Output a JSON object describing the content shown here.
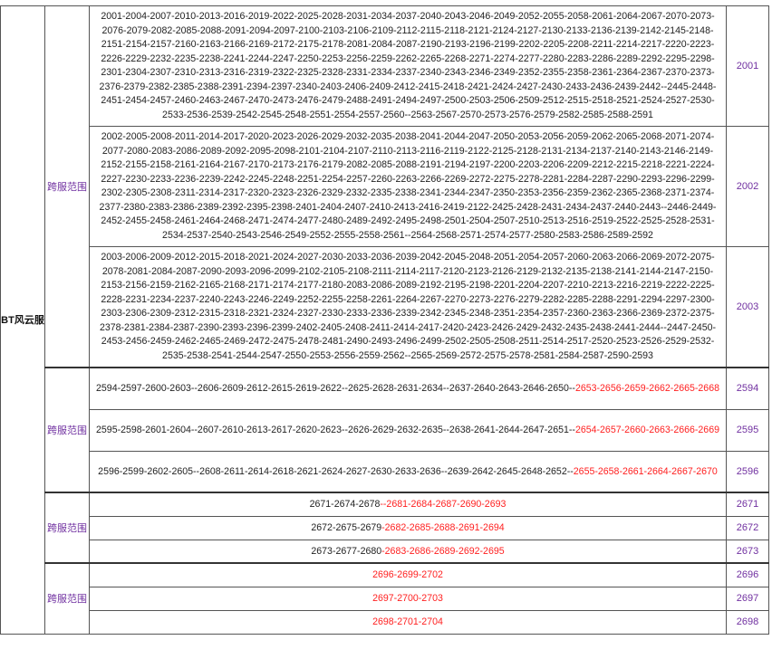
{
  "server_name": "BT风云服",
  "group_label": "跨服范围",
  "colors": {
    "id": "#7030a0",
    "highlight": "#ff2020",
    "text": "#222222"
  },
  "big_groups": [
    {
      "id": "2001",
      "lines": [
        "2001-2004-2007-2010-2013-2016-2019-2022-2025-2028-2031-2034-2037-2040-2043-2046-2049-2052-2055-2058-2061-2064-2067-2070-2073-",
        "2076-2079-2082-2085-2088-2091-2094-2097-2100-2103-2106-2109-2112-2115-2118-2121-2124-2127-2130-2133-2136-2139-2142-2145-2148-",
        "2151-2154-2157-2160-2163-2166-2169-2172-2175-2178-2081-2084-2087-2190-2193-2196-2199-2202-2205-2208-2211-2214-2217-2220-2223-",
        "2226-2229-2232-2235-2238-2241-2244-2247-2250-2253-2256-2259-2262-2265-2268-2271-2274-2277-2280-2283-2286-2289-2292-2295-2298-",
        "2301-2304-2307-2310-2313-2316-2319-2322-2325-2328-2331-2334-2337-2340-2343-2346-2349-2352-2355-2358-2361-2364-2367-2370-2373-",
        "2376-2379-2382-2385-2388-2391-2394-2397-2340-2403-2406-2409-2412-2415-2418-2421-2424-2427-2430-2433-2436-2439-2442--2445-2448-",
        "2451-2454-2457-2460-2463-2467-2470-2473-2476-2479-2488-2491-2494-2497-2500-2503-2506-2509-2512-2515-2518-2521-2524-2527-2530-",
        "2533-2536-2539-2542-2545-2548-2551-2554-2557-2560--2563-2567-2570-2573-2576-2579-2582-2585-2588-2591"
      ]
    },
    {
      "id": "2002",
      "lines": [
        "2002-2005-2008-2011-2014-2017-2020-2023-2026-2029-2032-2035-2038-2041-2044-2047-2050-2053-2056-2059-2062-2065-2068-2071-2074-",
        "2077-2080-2083-2086-2089-2092-2095-2098-2101-2104-2107-2110-2113-2116-2119-2122-2125-2128-2131-2134-2137-2140-2143-2146-2149-",
        "2152-2155-2158-2161-2164-2167-2170-2173-2176-2179-2082-2085-2088-2191-2194-2197-2200-2203-2206-2209-2212-2215-2218-2221-2224-",
        "2227-2230-2233-2236-2239-2242-2245-2248-2251-2254-2257-2260-2263-2266-2269-2272-2275-2278-2281-2284-2287-2290-2293-2296-2299-",
        "2302-2305-2308-2311-2314-2317-2320-2323-2326-2329-2332-2335-2338-2341-2344-2347-2350-2353-2356-2359-2362-2365-2368-2371-2374-",
        "2377-2380-2383-2386-2389-2392-2395-2398-2401-2404-2407-2410-2413-2416-2419-2122-2425-2428-2431-2434-2437-2440-2443--2446-2449-",
        "2452-2455-2458-2461-2464-2468-2471-2474-2477-2480-2489-2492-2495-2498-2501-2504-2507-2510-2513-2516-2519-2522-2525-2528-2531-",
        "2534-2537-2540-2543-2546-2549-2552-2555-2558-2561--2564-2568-2571-2574-2577-2580-2583-2586-2589-2592"
      ]
    },
    {
      "id": "2003",
      "lines": [
        "2003-2006-2009-2012-2015-2018-2021-2024-2027-2030-2033-2036-2039-2042-2045-2048-2051-2054-2057-2060-2063-2066-2069-2072-2075-",
        "2078-2081-2084-2087-2090-2093-2096-2099-2102-2105-2108-2111-2114-2117-2120-2123-2126-2129-2132-2135-2138-2141-2144-2147-2150-",
        "2153-2156-2159-2162-2165-2168-2171-2174-2177-2180-2083-2086-2089-2192-2195-2198-2201-2204-2207-2210-2213-2216-2219-2222-2225-",
        "2228-2231-2234-2237-2240-2243-2246-2249-2252-2255-2258-2261-2264-2267-2270-2273-2276-2279-2282-2285-2288-2291-2294-2297-2300-",
        "2303-2306-2309-2312-2315-2318-2321-2324-2327-2330-2333-2336-2339-2342-2345-2348-2351-2354-2357-2360-2363-2366-2369-2372-2375-",
        "2378-2381-2384-2387-2390-2393-2396-2399-2402-2405-2408-2411-2414-2417-2420-2423-2426-2429-2432-2435-2438-2441-2444--2447-2450-",
        "2453-2456-2459-2462-2465-2469-2472-2475-2478-2481-2490-2493-2496-2499-2502-2505-2508-2511-2514-2517-2520-2523-2526-2529-2532-",
        "2535-2538-2541-2544-2547-2550-2553-2556-2559-2562--2565-2569-2572-2575-2578-2581-2584-2587-2590-2593"
      ]
    }
  ],
  "group2": [
    {
      "id": "2594",
      "normal": "2594-2597-2600-2603--2606-2609-2612-2615-2619-2622--2625-2628-2631-2634--2637-2640-2643-2646-2650--",
      "red": "2653-2656-2659-2662-2665-2668"
    },
    {
      "id": "2595",
      "normal": "2595-2598-2601-2604--2607-2610-2613-2617-2620-2623--2626-2629-2632-2635--2638-2641-2644-2647-2651--",
      "red": "2654-2657-2660-2663-2666-2669"
    },
    {
      "id": "2596",
      "normal": "2596-2599-2602-2605--2608-2611-2614-2618-2621-2624-2627-2630-2633-2636--2639-2642-2645-2648-2652--",
      "red": "2655-2658-2661-2664-2667-2670"
    }
  ],
  "group3": [
    {
      "id": "2671",
      "normal": "2671-2674-2678",
      "red": "--2681-2684-2687-2690-2693"
    },
    {
      "id": "2672",
      "normal": "2672-2675-2679",
      "red": "-2682-2685-2688-2691-2694"
    },
    {
      "id": "2673",
      "normal": "2673-2677-2680",
      "red": "-2683-2686-2689-2692-2695"
    }
  ],
  "group4": [
    {
      "id": "2696",
      "normal": "",
      "red": "2696-2699-2702"
    },
    {
      "id": "2697",
      "normal": "",
      "red": "2697-2700-2703"
    },
    {
      "id": "2698",
      "normal": "",
      "red": "2698-2701-2704"
    }
  ]
}
